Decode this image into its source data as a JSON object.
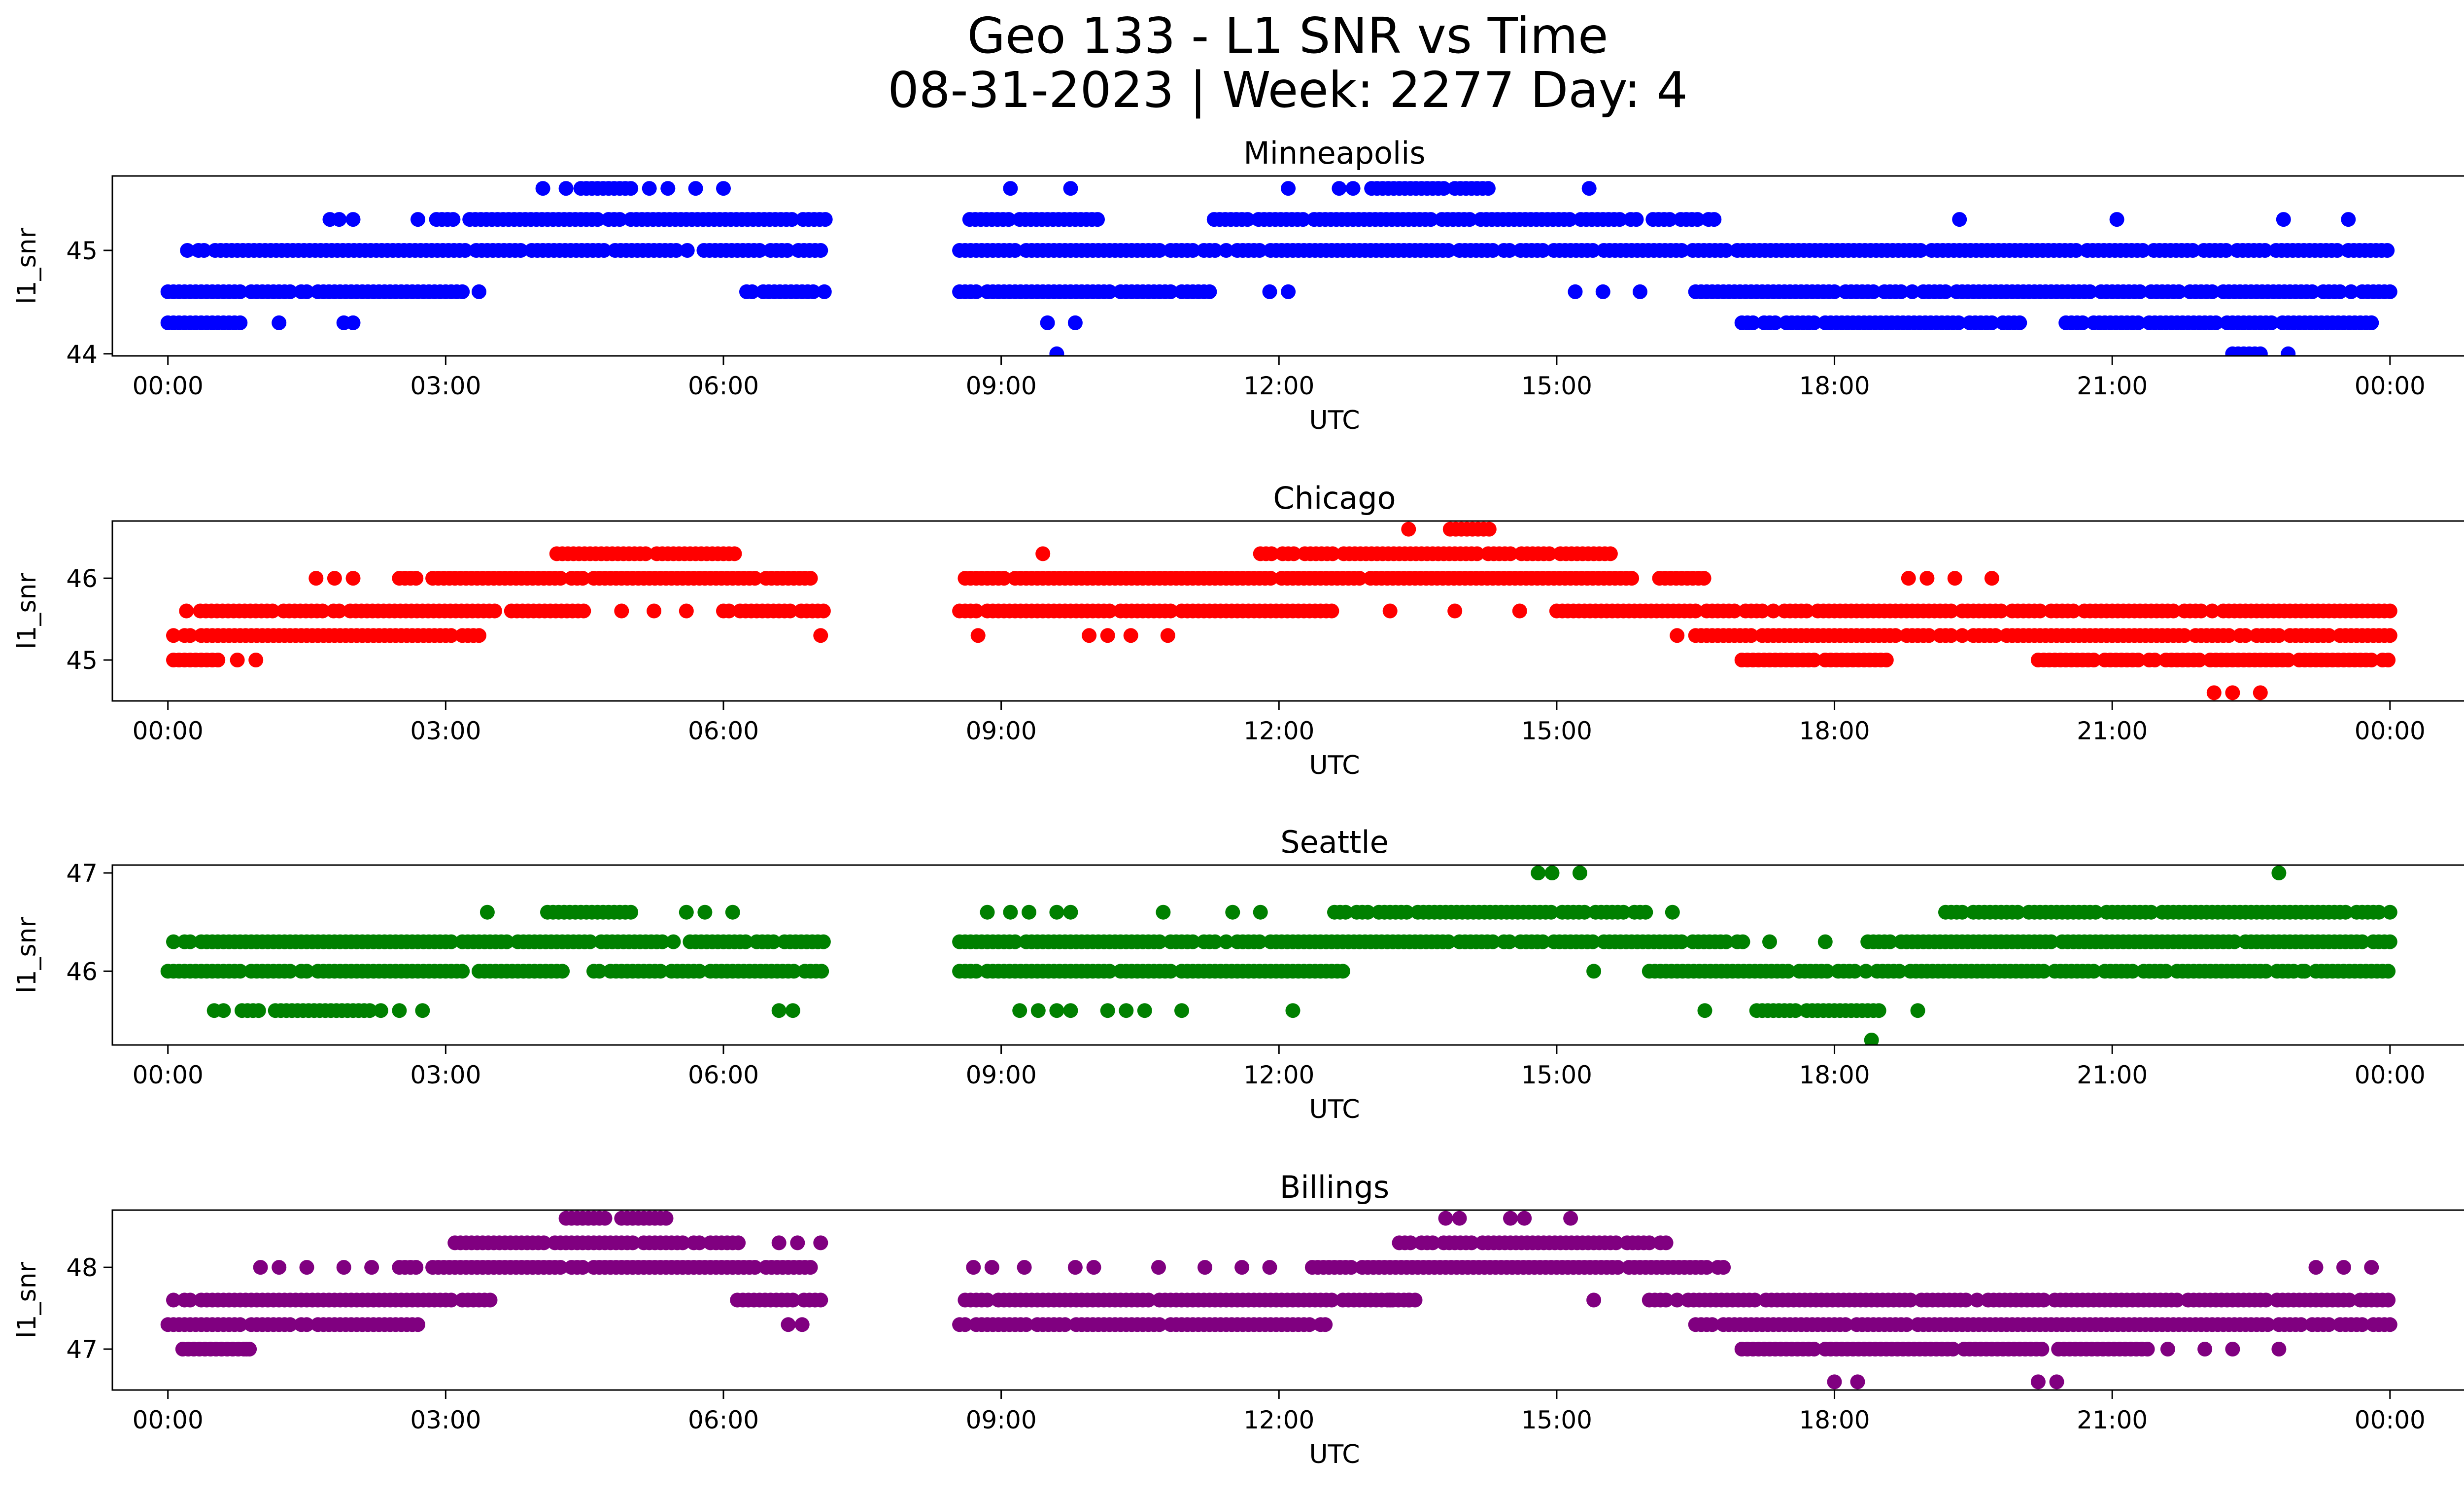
{
  "figure": {
    "title_line1": "Geo 133 - L1 SNR vs Time",
    "title_line2": "08-31-2023 | Week: 2277 Day: 4"
  },
  "chart_data": [
    {
      "type": "scatter",
      "title": "Minneapolis",
      "xlabel": "UTC",
      "ylabel": "l1_snr",
      "color": "#0000ff",
      "x_ticks": [
        "00:00",
        "03:00",
        "06:00",
        "09:00",
        "12:00",
        "15:00",
        "18:00",
        "21:00",
        "00:00"
      ],
      "xlim_hours": [
        -0.6,
        25.8
      ],
      "y_ticks": [
        44,
        45
      ],
      "ylim": [
        43.98,
        45.72
      ],
      "series": [
        {
          "name": "45.0",
          "y": 45.0,
          "x_ranges_hours": [
            [
              0.15,
              7.1
            ],
            [
              8.55,
              24.0
            ]
          ]
        },
        {
          "name": "44.6",
          "y": 44.6,
          "x_ranges_hours": [
            [
              0.0,
              3.4
            ],
            [
              6.25,
              7.1
            ],
            [
              8.55,
              11.25
            ],
            [
              16.5,
              24.0
            ]
          ]
        },
        {
          "name": "45.3",
          "y": 45.3,
          "x_ranges_hours": [
            [
              2.9,
              7.1
            ],
            [
              8.6,
              10.05
            ],
            [
              11.3,
              16.7
            ]
          ]
        },
        {
          "name": "44.3",
          "y": 44.3,
          "x_ranges_hours": [
            [
              0.0,
              0.8
            ],
            [
              17.0,
              20.0
            ],
            [
              20.5,
              23.8
            ]
          ]
        },
        {
          "name": "45.6",
          "y": 45.6,
          "x_ranges_hours": [
            [
              4.4,
              5.0
            ],
            [
              13.0,
              14.3
            ]
          ]
        },
        {
          "name": "44.0",
          "y": 44.0,
          "x_ranges_hours": [
            [
              22.3,
              22.6
            ]
          ]
        }
      ],
      "points": [
        [
          1.2,
          44.3
        ],
        [
          1.9,
          44.3
        ],
        [
          2.0,
          44.3
        ],
        [
          9.5,
          44.3
        ],
        [
          9.8,
          44.3
        ],
        [
          23.8,
          44.3
        ],
        [
          1.75,
          45.3
        ],
        [
          1.85,
          45.3
        ],
        [
          2.0,
          45.3
        ],
        [
          2.7,
          45.3
        ],
        [
          19.35,
          45.3
        ],
        [
          21.05,
          45.3
        ],
        [
          22.85,
          45.3
        ],
        [
          23.55,
          45.3
        ],
        [
          4.05,
          45.6
        ],
        [
          4.3,
          45.6
        ],
        [
          5.2,
          45.6
        ],
        [
          5.4,
          45.6
        ],
        [
          5.7,
          45.6
        ],
        [
          6.0,
          45.6
        ],
        [
          9.1,
          45.6
        ],
        [
          9.75,
          45.6
        ],
        [
          12.1,
          45.6
        ],
        [
          12.65,
          45.6
        ],
        [
          12.8,
          45.6
        ],
        [
          15.35,
          45.6
        ],
        [
          11.9,
          44.6
        ],
        [
          12.1,
          44.6
        ],
        [
          15.2,
          44.6
        ],
        [
          15.5,
          44.6
        ],
        [
          15.9,
          44.6
        ],
        [
          9.6,
          44.0
        ],
        [
          22.9,
          44.0
        ]
      ]
    },
    {
      "type": "scatter",
      "title": "Chicago",
      "xlabel": "UTC",
      "ylabel": "l1_snr",
      "color": "#ff0000",
      "x_ticks": [
        "00:00",
        "03:00",
        "06:00",
        "09:00",
        "12:00",
        "15:00",
        "18:00",
        "21:00",
        "00:00"
      ],
      "xlim_hours": [
        -0.6,
        25.8
      ],
      "y_ticks": [
        45,
        46
      ],
      "ylim": [
        44.5,
        46.7
      ],
      "series": [
        {
          "name": "45.3",
          "y": 45.3,
          "x_ranges_hours": [
            [
              0.0,
              3.4
            ],
            [
              16.5,
              24.0
            ]
          ]
        },
        {
          "name": "45.6",
          "y": 45.6,
          "x_ranges_hours": [
            [
              0.35,
              4.5
            ],
            [
              6.0,
              7.1
            ],
            [
              8.55,
              12.6
            ],
            [
              15.0,
              24.0
            ]
          ]
        },
        {
          "name": "46.0",
          "y": 46.0,
          "x_ranges_hours": [
            [
              2.5,
              7.1
            ],
            [
              8.55,
              16.6
            ]
          ]
        },
        {
          "name": "46.3",
          "y": 46.3,
          "x_ranges_hours": [
            [
              4.2,
              6.2
            ],
            [
              11.8,
              15.6
            ]
          ]
        },
        {
          "name": "45.0",
          "y": 45.0,
          "x_ranges_hours": [
            [
              0.0,
              0.55
            ],
            [
              17.0,
              18.6
            ],
            [
              20.2,
              24.0
            ]
          ]
        },
        {
          "name": "46.6",
          "y": 46.6,
          "x_ranges_hours": [
            [
              13.85,
              14.3
            ]
          ]
        }
      ],
      "points": [
        [
          0.75,
          45.0
        ],
        [
          0.95,
          45.0
        ],
        [
          0.2,
          45.6
        ],
        [
          1.6,
          46.0
        ],
        [
          1.8,
          46.0
        ],
        [
          2.0,
          46.0
        ],
        [
          7.05,
          45.3
        ],
        [
          8.75,
          45.3
        ],
        [
          9.95,
          45.3
        ],
        [
          10.15,
          45.3
        ],
        [
          10.4,
          45.3
        ],
        [
          10.8,
          45.3
        ],
        [
          16.3,
          45.3
        ],
        [
          9.45,
          46.3
        ],
        [
          13.4,
          46.6
        ],
        [
          4.9,
          45.6
        ],
        [
          5.25,
          45.6
        ],
        [
          5.6,
          45.6
        ],
        [
          13.2,
          45.6
        ],
        [
          13.9,
          45.6
        ],
        [
          14.6,
          45.6
        ],
        [
          18.8,
          46.0
        ],
        [
          19.0,
          46.0
        ],
        [
          19.3,
          46.0
        ],
        [
          19.7,
          46.0
        ],
        [
          22.1,
          44.6
        ],
        [
          22.3,
          44.6
        ],
        [
          22.6,
          44.6
        ]
      ]
    },
    {
      "type": "scatter",
      "title": "Seattle",
      "xlabel": "UTC",
      "ylabel": "l1_snr",
      "color": "#008000",
      "x_ticks": [
        "00:00",
        "03:00",
        "06:00",
        "09:00",
        "12:00",
        "15:00",
        "18:00",
        "21:00",
        "00:00"
      ],
      "xlim_hours": [
        -0.6,
        25.8
      ],
      "y_ticks": [
        46,
        47
      ],
      "ylim": [
        45.25,
        47.08
      ],
      "series": [
        {
          "name": "46.3",
          "y": 46.3,
          "x_ranges_hours": [
            [
              0.0,
              7.1
            ],
            [
              8.55,
              17.05
            ],
            [
              18.3,
              24.0
            ]
          ]
        },
        {
          "name": "46.0",
          "y": 46.0,
          "x_ranges_hours": [
            [
              0.0,
              4.3
            ],
            [
              4.6,
              7.1
            ],
            [
              8.55,
              12.7
            ],
            [
              16.0,
              24.0
            ]
          ]
        },
        {
          "name": "45.6",
          "y": 45.6,
          "x_ranges_hours": [
            [
              0.8,
              2.2
            ],
            [
              17.1,
              18.5
            ]
          ]
        },
        {
          "name": "46.6",
          "y": 46.6,
          "x_ranges_hours": [
            [
              4.1,
              5.0
            ],
            [
              12.6,
              16.0
            ],
            [
              19.2,
              24.0
            ]
          ]
        }
      ],
      "points": [
        [
          0.5,
          45.6
        ],
        [
          0.6,
          45.6
        ],
        [
          2.3,
          45.6
        ],
        [
          2.5,
          45.6
        ],
        [
          2.75,
          45.6
        ],
        [
          6.6,
          45.6
        ],
        [
          6.75,
          45.6
        ],
        [
          9.2,
          45.6
        ],
        [
          9.4,
          45.6
        ],
        [
          9.6,
          45.6
        ],
        [
          9.75,
          45.6
        ],
        [
          10.15,
          45.6
        ],
        [
          10.35,
          45.6
        ],
        [
          10.55,
          45.6
        ],
        [
          10.95,
          45.6
        ],
        [
          12.15,
          45.6
        ],
        [
          16.6,
          45.6
        ],
        [
          18.9,
          45.6
        ],
        [
          18.4,
          45.3
        ],
        [
          3.45,
          46.6
        ],
        [
          5.6,
          46.6
        ],
        [
          5.8,
          46.6
        ],
        [
          6.1,
          46.6
        ],
        [
          8.85,
          46.6
        ],
        [
          9.1,
          46.6
        ],
        [
          9.3,
          46.6
        ],
        [
          9.6,
          46.6
        ],
        [
          9.75,
          46.6
        ],
        [
          10.75,
          46.6
        ],
        [
          11.5,
          46.6
        ],
        [
          11.8,
          46.6
        ],
        [
          16.25,
          46.6
        ],
        [
          14.8,
          47.0
        ],
        [
          14.95,
          47.0
        ],
        [
          15.25,
          47.0
        ],
        [
          22.8,
          47.0
        ],
        [
          15.4,
          46.0
        ],
        [
          23.05,
          46.0
        ],
        [
          23.5,
          46.0
        ],
        [
          17.3,
          46.3
        ],
        [
          17.9,
          46.3
        ]
      ]
    },
    {
      "type": "scatter",
      "title": "Billings",
      "xlabel": "UTC",
      "ylabel": "l1_snr",
      "color": "#800080",
      "x_ticks": [
        "00:00",
        "03:00",
        "06:00",
        "09:00",
        "12:00",
        "15:00",
        "18:00",
        "21:00",
        "00:00"
      ],
      "xlim_hours": [
        -0.6,
        25.8
      ],
      "y_ticks": [
        47,
        48
      ],
      "ylim": [
        46.5,
        48.7
      ],
      "series": [
        {
          "name": "47.6",
          "y": 47.6,
          "x_ranges_hours": [
            [
              0.0,
              3.5
            ],
            [
              6.15,
              7.1
            ],
            [
              8.55,
              13.5
            ],
            [
              16.0,
              24.0
            ]
          ]
        },
        {
          "name": "47.3",
          "y": 47.3,
          "x_ranges_hours": [
            [
              0.0,
              2.7
            ],
            [
              8.55,
              12.5
            ],
            [
              16.5,
              24.0
            ]
          ]
        },
        {
          "name": "48.0",
          "y": 48.0,
          "x_ranges_hours": [
            [
              2.5,
              7.1
            ],
            [
              12.3,
              16.8
            ]
          ]
        },
        {
          "name": "48.3",
          "y": 48.3,
          "x_ranges_hours": [
            [
              3.1,
              6.2
            ],
            [
              13.3,
              16.2
            ]
          ]
        },
        {
          "name": "47.0",
          "y": 47.0,
          "x_ranges_hours": [
            [
              0.1,
              0.9
            ],
            [
              17.0,
              21.4
            ]
          ]
        },
        {
          "name": "48.6",
          "y": 48.6,
          "x_ranges_hours": [
            [
              4.3,
              5.4
            ]
          ]
        }
      ],
      "points": [
        [
          0.85,
          47.0
        ],
        [
          21.6,
          47.0
        ],
        [
          22.0,
          47.0
        ],
        [
          22.3,
          47.0
        ],
        [
          22.8,
          47.0
        ],
        [
          1.0,
          48.0
        ],
        [
          1.2,
          48.0
        ],
        [
          1.5,
          48.0
        ],
        [
          1.9,
          48.0
        ],
        [
          2.2,
          48.0
        ],
        [
          6.6,
          48.3
        ],
        [
          6.8,
          48.3
        ],
        [
          7.05,
          48.3
        ],
        [
          6.7,
          47.3
        ],
        [
          6.85,
          47.3
        ],
        [
          8.7,
          48.0
        ],
        [
          8.9,
          48.0
        ],
        [
          9.25,
          48.0
        ],
        [
          9.8,
          48.0
        ],
        [
          10.0,
          48.0
        ],
        [
          10.7,
          48.0
        ],
        [
          11.2,
          48.0
        ],
        [
          11.6,
          48.0
        ],
        [
          11.9,
          48.0
        ],
        [
          12.5,
          47.3
        ],
        [
          13.2,
          47.6
        ],
        [
          13.4,
          47.6
        ],
        [
          15.4,
          47.6
        ],
        [
          13.8,
          48.6
        ],
        [
          13.95,
          48.6
        ],
        [
          14.5,
          48.6
        ],
        [
          14.65,
          48.6
        ],
        [
          15.15,
          48.6
        ],
        [
          18.0,
          46.6
        ],
        [
          18.25,
          46.6
        ],
        [
          20.2,
          46.6
        ],
        [
          20.4,
          46.6
        ],
        [
          23.2,
          48.0
        ],
        [
          23.5,
          48.0
        ],
        [
          23.8,
          48.0
        ]
      ]
    }
  ]
}
